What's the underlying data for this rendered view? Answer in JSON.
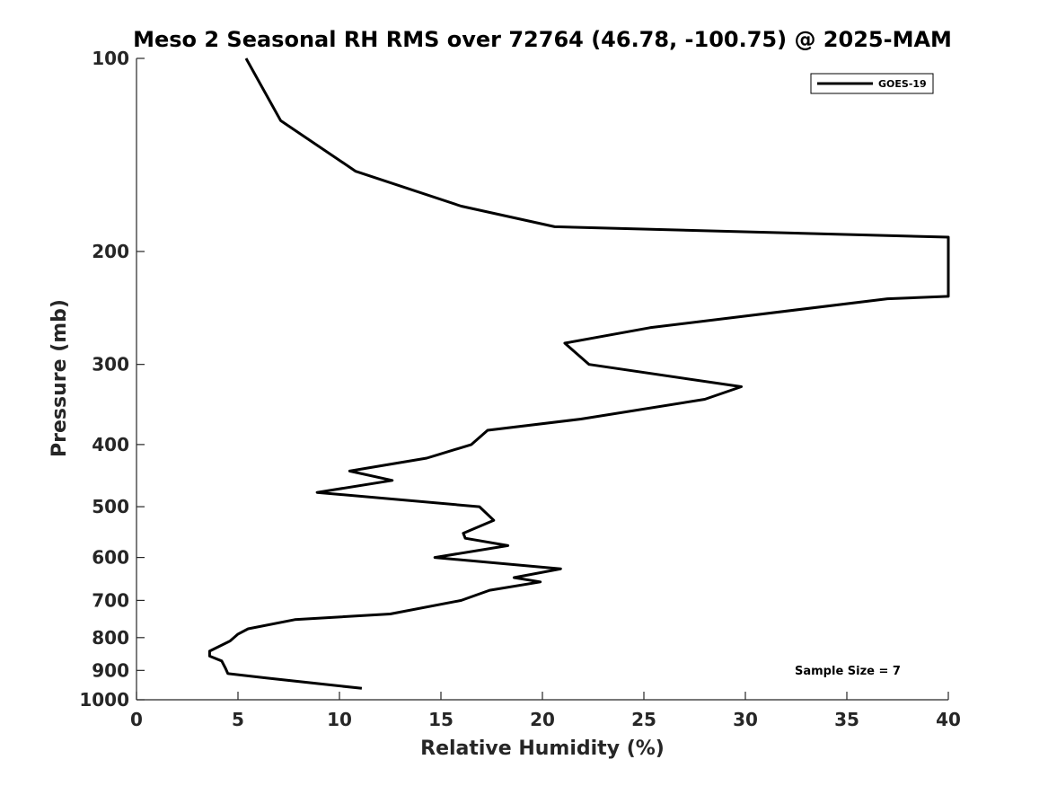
{
  "chart_data": {
    "type": "line",
    "title": "Meso 2 Seasonal RH RMS over 72764 (46.78, -100.75) @ 2025-MAM",
    "xlabel": "Relative Humidity (%)",
    "ylabel": "Pressure (mb)",
    "xlim": [
      0,
      40
    ],
    "ylim": [
      100,
      1000
    ],
    "y_scale": "log",
    "y_reversed": true,
    "x_ticks": [
      0,
      5,
      10,
      15,
      20,
      25,
      30,
      35,
      40
    ],
    "y_ticks": [
      100,
      200,
      300,
      400,
      500,
      600,
      700,
      800,
      900,
      1000
    ],
    "grid": false,
    "legend_position": "top-right",
    "series": [
      {
        "name": "GOES-19",
        "color": "#000000",
        "points": [
          [
            5.4,
            100
          ],
          [
            7.1,
            125
          ],
          [
            10.8,
            150
          ],
          [
            16.0,
            170
          ],
          [
            20.6,
            183
          ],
          [
            40.0,
            190
          ],
          [
            40.0,
            235
          ],
          [
            37.0,
            237
          ],
          [
            25.3,
            263
          ],
          [
            21.1,
            278
          ],
          [
            22.3,
            300
          ],
          [
            29.8,
            325
          ],
          [
            28.0,
            340
          ],
          [
            21.9,
            365
          ],
          [
            17.3,
            380
          ],
          [
            16.5,
            400
          ],
          [
            14.3,
            420
          ],
          [
            10.5,
            440
          ],
          [
            12.6,
            455
          ],
          [
            8.9,
            475
          ],
          [
            16.9,
            500
          ],
          [
            17.6,
            525
          ],
          [
            16.1,
            550
          ],
          [
            16.2,
            560
          ],
          [
            18.3,
            575
          ],
          [
            14.7,
            600
          ],
          [
            20.9,
            625
          ],
          [
            18.6,
            645
          ],
          [
            19.9,
            655
          ],
          [
            17.4,
            675
          ],
          [
            16.0,
            700
          ],
          [
            12.5,
            735
          ],
          [
            7.8,
            750
          ],
          [
            5.5,
            775
          ],
          [
            5.0,
            790
          ],
          [
            4.6,
            810
          ],
          [
            3.6,
            840
          ],
          [
            3.6,
            855
          ],
          [
            4.2,
            870
          ],
          [
            4.4,
            895
          ],
          [
            4.5,
            910
          ],
          [
            6.4,
            925
          ],
          [
            11.1,
            960
          ]
        ]
      }
    ],
    "annotation": "Sample Size = 7"
  }
}
